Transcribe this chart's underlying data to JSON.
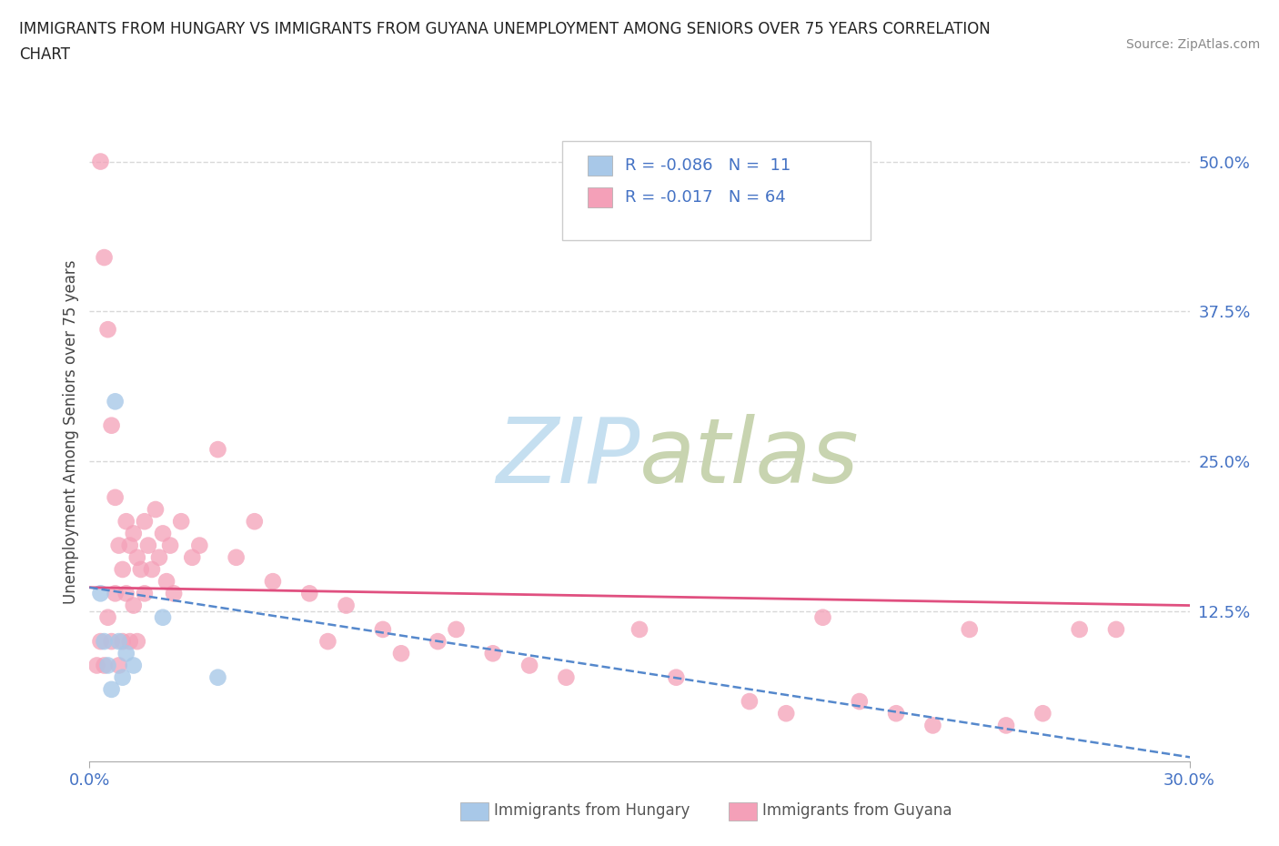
{
  "title_line1": "IMMIGRANTS FROM HUNGARY VS IMMIGRANTS FROM GUYANA UNEMPLOYMENT AMONG SENIORS OVER 75 YEARS CORRELATION",
  "title_line2": "CHART",
  "source": "Source: ZipAtlas.com",
  "ylabel": "Unemployment Among Seniors over 75 years",
  "xlim": [
    0.0,
    0.3
  ],
  "ylim": [
    0.0,
    0.55
  ],
  "hungary_color": "#a8c8e8",
  "guyana_color": "#f4a0b8",
  "trend_hungary_color": "#5588cc",
  "trend_guyana_color": "#e05080",
  "watermark_zip_color": "#c8dff0",
  "watermark_atlas_color": "#c8d8c0",
  "background_color": "#ffffff",
  "grid_color": "#d8d8d8",
  "title_color": "#222222",
  "axis_label_color": "#444444",
  "tick_color": "#4472c4",
  "legend_text_color": "#4472c4",
  "source_color": "#888888",
  "bottom_legend_color": "#555555",
  "hungary_x": [
    0.003,
    0.004,
    0.005,
    0.006,
    0.007,
    0.008,
    0.009,
    0.01,
    0.012,
    0.02,
    0.035
  ],
  "hungary_y": [
    0.14,
    0.1,
    0.08,
    0.06,
    0.3,
    0.1,
    0.07,
    0.09,
    0.08,
    0.12,
    0.07
  ],
  "guyana_x": [
    0.002,
    0.003,
    0.003,
    0.004,
    0.004,
    0.005,
    0.005,
    0.006,
    0.006,
    0.007,
    0.007,
    0.008,
    0.008,
    0.009,
    0.009,
    0.01,
    0.01,
    0.011,
    0.011,
    0.012,
    0.012,
    0.013,
    0.013,
    0.014,
    0.015,
    0.015,
    0.016,
    0.017,
    0.018,
    0.019,
    0.02,
    0.021,
    0.022,
    0.023,
    0.025,
    0.028,
    0.03,
    0.035,
    0.04,
    0.045,
    0.05,
    0.06,
    0.065,
    0.07,
    0.08,
    0.085,
    0.095,
    0.1,
    0.11,
    0.12,
    0.13,
    0.15,
    0.16,
    0.18,
    0.19,
    0.2,
    0.21,
    0.22,
    0.23,
    0.24,
    0.25,
    0.26,
    0.27,
    0.28
  ],
  "guyana_y": [
    0.08,
    0.5,
    0.1,
    0.08,
    0.42,
    0.36,
    0.12,
    0.28,
    0.1,
    0.22,
    0.14,
    0.18,
    0.08,
    0.16,
    0.1,
    0.2,
    0.14,
    0.18,
    0.1,
    0.19,
    0.13,
    0.17,
    0.1,
    0.16,
    0.2,
    0.14,
    0.18,
    0.16,
    0.21,
    0.17,
    0.19,
    0.15,
    0.18,
    0.14,
    0.2,
    0.17,
    0.18,
    0.26,
    0.17,
    0.2,
    0.15,
    0.14,
    0.1,
    0.13,
    0.11,
    0.09,
    0.1,
    0.11,
    0.09,
    0.08,
    0.07,
    0.11,
    0.07,
    0.05,
    0.04,
    0.12,
    0.05,
    0.04,
    0.03,
    0.11,
    0.03,
    0.04,
    0.11,
    0.11
  ]
}
